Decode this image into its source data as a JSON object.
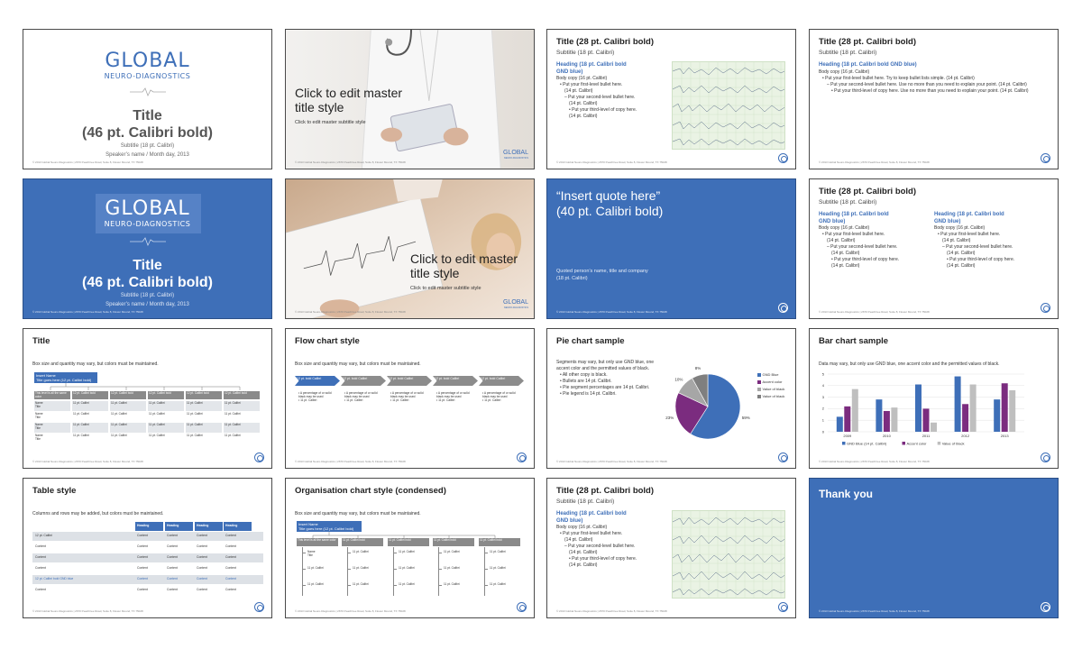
{
  "theme": {
    "brand_blue": "#3e6fb8",
    "accent_purple": "#7b2c7f",
    "gray": "#a6a6a6",
    "dark_gray": "#7f7f7f"
  },
  "footer_text": "© 2013 Global Neuro-Diagnostics  |  2670 Peachtree Road, Suite 8, Flower Mound, TX 75028",
  "logo": {
    "word": "GLOBAL",
    "sub": "NEURO-DIAGNOSTICS",
    "corner": "GLOBAL"
  },
  "s1": {
    "title1": "Title",
    "title2": "(46 pt. Calibri bold)",
    "subtitle": "Subtitle (18 pt. Calibri)",
    "speaker": "Speaker’s name / Month day, 2013"
  },
  "s2": {
    "title1": "Click to edit master",
    "title2": "title style",
    "subtitle": "Click to edit master subtitle style"
  },
  "s3": {
    "title": "Title (28 pt. Calibri bold)",
    "subtitle": "Subtitle (18 pt. Calibri)",
    "heading1": "Heading (18 pt. Calibri bold",
    "heading2": "GND blue)",
    "body": "Body copy (16 pt. Calibri)",
    "b1": "• Put your first-level bullet here.",
    "b1b": "(14 pt. Calibri)",
    "b2": "– Put your second-level bullet here.",
    "b2b": "(14 pt. Calibri)",
    "b3": "• Put your third-level of copy here.",
    "b3b": "(14 pt. Calibri)"
  },
  "s4": {
    "title": "Title (28 pt. Calibri bold)",
    "subtitle": "Subtitle (18 pt. Calibri)",
    "heading": "Heading (18 pt. Calibri bold GND blue)",
    "body": "Body copy (16 pt. Calibri)",
    "b1": "• Put your first-level bullet here. Try to keep bullet lists simple. (14 pt. Calibri)",
    "b2": "– Put your second-level bullet here. Use no more than you need to explain your point. (14 pt. Calibri)",
    "b3": "• Put your third-level of copy here. Use no more than you need to explain your point. (14 pt. Calibri)"
  },
  "s5": {
    "title1": "Title",
    "title2": "(46 pt. Calibri bold)",
    "subtitle": "Subtitle (18 pt. Calibri)",
    "speaker": "Speaker’s name / Month day, 2013"
  },
  "s6": {
    "title1": "Click to edit master",
    "title2": "title style",
    "subtitle": "Click to edit master subtitle style"
  },
  "s7": {
    "quote1": "“Insert quote here”",
    "quote2": "(40 pt. Calibri bold)",
    "src1": "Quoted person’s name, title and company",
    "src2": "(18 pt. Calibri)"
  },
  "s8": {
    "title": "Title (28 pt. Calibri bold)",
    "subtitle": "Subtitle (18 pt. Calibri)",
    "heading1": "Heading (18 pt. Calibri bold",
    "heading2": "GND blue)",
    "body": "Body copy (16 pt. Calibri)",
    "b1": "• Put your first-level bullet here.",
    "b1b": "(14 pt. Calibri)",
    "b2": "– Put your second-level bullet here.",
    "b2b": "(14 pt. Calibri)",
    "b3": "• Put your third-level of copy here.",
    "b3b": "(14 pt. Calibri)"
  },
  "s9": {
    "title": "Title",
    "note": "Box size and quantity may vary, but colors must be maintained.",
    "top_box1": "Insert Name",
    "top_box2": "Title goes here (12 pt. Calibri bold)",
    "col_first": "This level is all the same color",
    "col_head": "12 pt. Calibri bold",
    "name": "Name",
    "cell": "11 pt. Calibri"
  },
  "s10": {
    "title": "Flow chart style",
    "note": "Box size and quantity may vary, but colors must be maintained.",
    "arrow": "12 pt. bold Calibri",
    "t1": "• A percentage of or solid black may be used",
    "t2": "• 11 pt. Calibri"
  },
  "s11": {
    "title": "Pie chart sample",
    "intro1": "Segments may vary, but only use GND blue, one",
    "intro2": "accent color and the permitted values of black.",
    "b1": "• All other copy is black.",
    "b2": "• Bullets are 14 pt. Calibri.",
    "b3": "• Pie segment percentages are 14 pt. Calibri.",
    "b4": "• Pie legend is 14 pt. Calibri."
  },
  "s12": {
    "title": "Bar chart sample",
    "note": "Data may vary, but only use GND blue, one accent color and the permitted values of black."
  },
  "s13": {
    "title": "Table style",
    "note": "Columns and rows may be added, but colors must be maintained.",
    "heading": "Heading",
    "rows": [
      "12 pt. Calibri",
      "Content",
      "Content",
      "Content",
      "12 pt. Calibri bold GND blue",
      "Content"
    ],
    "content": "Content"
  },
  "s14": {
    "title": "Organisation chart style (condensed)",
    "note": "Box size and quantity may vary, but colors must be maintained.",
    "top_box1": "Insert Name",
    "top_box2": "Title goes here (12 pt. Calibri bold)",
    "first": "This level is all the same color",
    "head": "11 pt. Calibri bold",
    "name": "Name",
    "ttl": "Title",
    "cell": "11 pt. Calibri"
  },
  "s15": {
    "title": "Title (28 pt. Calibri bold)",
    "subtitle": "Subtitle (18 pt. Calibri)",
    "heading1": "Heading (18 pt. Calibri bold",
    "heading2": "GND blue)",
    "body": "Body copy (16 pt. Calibri)",
    "b1": "• Put your first-level bullet here.",
    "b1b": "(14 pt. Calibri)",
    "b2": "– Put your second-level bullet here.",
    "b2b": "(14 pt. Calibri)",
    "b3": "• Put your third-level of copy here.",
    "b3b": "(14 pt. Calibri)"
  },
  "s16": {
    "title": "Thank you"
  },
  "chart_data": [
    {
      "type": "pie",
      "title": "",
      "categories": [
        "GND Blue",
        "Accent color",
        "Value of black",
        "Value of black"
      ],
      "values": [
        59,
        23,
        10,
        8
      ],
      "labels": [
        "59%",
        "23%",
        "10%",
        "8%"
      ],
      "colors": [
        "#3e6fb8",
        "#7b2c7f",
        "#a6a6a6",
        "#7f7f7f"
      ],
      "legend": "right"
    },
    {
      "type": "bar",
      "title": "",
      "categories": [
        "2009",
        "2010",
        "2011",
        "2012",
        "2013"
      ],
      "series": [
        {
          "name": "GND Blue (14 pt. Calibri)",
          "values": [
            1.3,
            2.8,
            4.1,
            4.8,
            2.8
          ],
          "color": "#3e6fb8"
        },
        {
          "name": "Accent color",
          "values": [
            2.2,
            1.8,
            2.0,
            2.4,
            4.2
          ],
          "color": "#7b2c7f"
        },
        {
          "name": "Value of black",
          "values": [
            3.7,
            2.1,
            0.8,
            4.1,
            3.6
          ],
          "color": "#bfbfbf"
        }
      ],
      "ylim": [
        0,
        5
      ],
      "yticks": [
        "0",
        "1",
        "2",
        "3",
        "4",
        "5"
      ],
      "legend": "bottom",
      "grid": true
    }
  ]
}
